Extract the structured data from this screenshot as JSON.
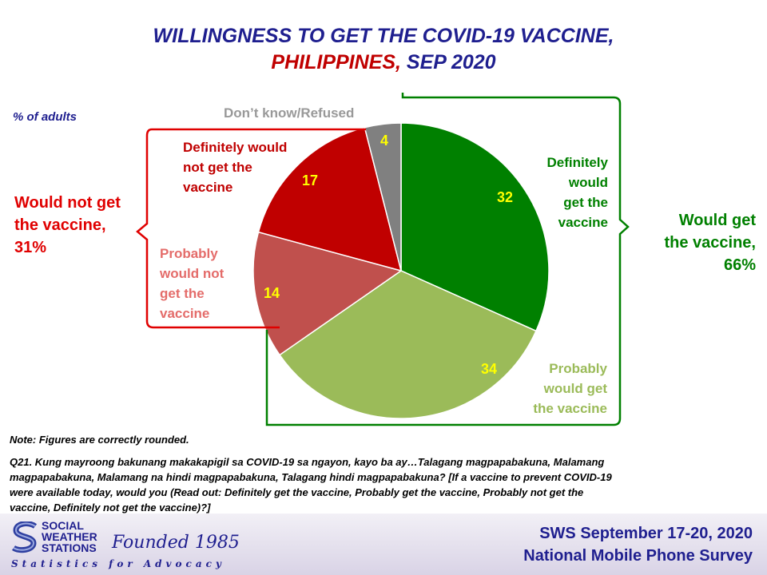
{
  "title": {
    "line1": "WILLINGNESS TO GET THE COVID-19 VACCINE,",
    "line2_part1": "PHILIPPINES,",
    "line2_part2": " SEP 2020"
  },
  "subtitle": "% of adults",
  "chart_data": {
    "type": "pie",
    "title": "WILLINGNESS TO GET THE COVID-19 VACCINE, PHILIPPINES, SEP 2020",
    "unit": "% of adults",
    "slices": [
      {
        "label_lines": [
          "Definitely",
          "would",
          "get the",
          "vaccine"
        ],
        "value": 32,
        "color": "#008000",
        "label_color": "#008000"
      },
      {
        "label_lines": [
          "Probably",
          "would get",
          "the vaccine"
        ],
        "value": 34,
        "color": "#9bbb59",
        "label_color": "#9bbb59"
      },
      {
        "label_lines": [
          "Probably",
          "would not",
          "get the",
          "vaccine"
        ],
        "value": 14,
        "color": "#c0504d",
        "label_color": "#e46c6a"
      },
      {
        "label_lines": [
          "Definitely would",
          "not get the",
          "vaccine"
        ],
        "value": 17,
        "color": "#c00000",
        "label_color": "#c00000"
      },
      {
        "label_lines": [
          "Don’t know/Refused"
        ],
        "value": 4,
        "color": "#808080",
        "label_color": "#999999"
      }
    ],
    "groups": {
      "would_get": {
        "lines": [
          "Would get",
          "the vaccine,",
          "66%"
        ],
        "color": "#008000"
      },
      "would_not": {
        "lines": [
          "Would not get",
          "the vaccine,",
          "31%"
        ],
        "color": "#e00000"
      }
    }
  },
  "notes": {
    "note1": "Note: Figures are correctly rounded.",
    "q_lines": [
      "Q21. Kung mayroong bakunang makakapigil sa COVID-19 sa ngayon, kayo ba ay…Talagang magpapabakuna, Malamang",
      "magpapabakuna, Malamang na hindi magpapabakuna, Talagang hindi magpapabakuna? [If a vaccine to prevent COVID-19",
      "were available today, would you (Read out: Definitely get the vaccine, Probably get the vaccine, Probably not get the",
      "vaccine, Definitely not get the vaccine)?]"
    ]
  },
  "footer": {
    "logo_lines": [
      "SOCIAL",
      "WEATHER",
      "STATIONS"
    ],
    "founded": "Founded 1985",
    "tagline": "Statistics for Advocacy",
    "survey_line1": "SWS September 17-20, 2020",
    "survey_line2": "National Mobile Phone Survey"
  }
}
